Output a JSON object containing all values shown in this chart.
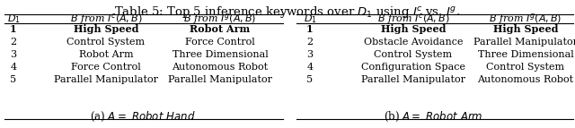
{
  "title": "Table 5: Top 5 inference keywords over $D_1$ using $I^c$ vs. $I^g$.",
  "col_headers_a": [
    "$D_1$",
    "$B$ from $I^c(A,B)$",
    "$B$ from $I^g(A,B)$"
  ],
  "col_headers_b": [
    "$D_1$",
    "$B$ from $I^c(A,B)$",
    "$B$ from $I^g(A,B)$"
  ],
  "rows_a": [
    [
      "1",
      "High Speed",
      "Robot Arm"
    ],
    [
      "2",
      "Control System",
      "Force Control"
    ],
    [
      "3",
      "Robot Arm",
      "Three Dimensional"
    ],
    [
      "4",
      "Force Control",
      "Autonomous Robot"
    ],
    [
      "5",
      "Parallel Manipulator",
      "Parallel Manipulator"
    ]
  ],
  "rows_b": [
    [
      "1",
      "High Speed",
      "High Speed"
    ],
    [
      "2",
      "Obstacle Avoidance",
      "Parallel Manipulator"
    ],
    [
      "3",
      "Control System",
      "Three Dimensional"
    ],
    [
      "4",
      "Configuration Space",
      "Control System"
    ],
    [
      "5",
      "Parallel Manipulator",
      "Autonomous Robot"
    ]
  ],
  "bold_rows_a": [
    0
  ],
  "bold_rows_b": [
    0
  ],
  "bg_color": "#ffffff",
  "text_color": "#000000",
  "title_fontsize": 9.5,
  "header_fontsize": 8.0,
  "body_fontsize": 8.0,
  "caption_fontsize": 8.5
}
